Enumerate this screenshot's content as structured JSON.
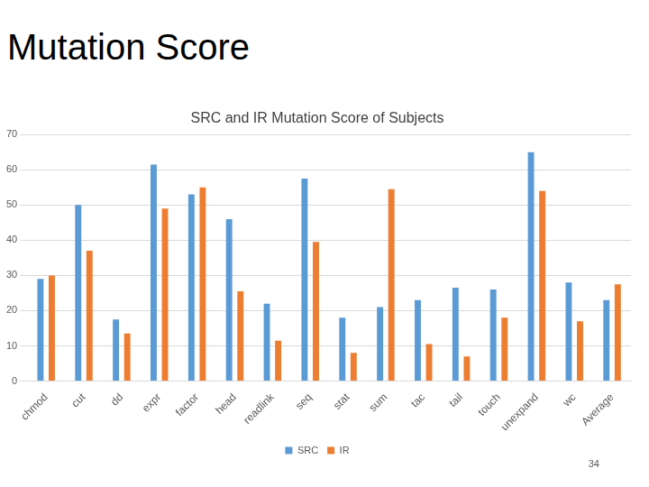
{
  "slide": {
    "title": "Mutation Score",
    "page_number": 34
  },
  "chart_data": {
    "type": "bar",
    "title": "SRC and IR Mutation Score of Subjects",
    "categories": [
      "chmod",
      "cut",
      "dd",
      "expr",
      "factor",
      "head",
      "readlink",
      "seq",
      "stat",
      "sum",
      "tac",
      "tail",
      "touch",
      "unexpand",
      "wc",
      "Average"
    ],
    "series": [
      {
        "name": "SRC",
        "color": "#5b9bd5",
        "values": [
          29,
          50,
          17.5,
          61.5,
          53,
          46,
          22,
          57.5,
          18,
          21,
          23,
          26.5,
          26,
          65,
          28,
          23
        ]
      },
      {
        "name": "IR",
        "color": "#ed7d31",
        "values": [
          30,
          37,
          13.5,
          49,
          55,
          25.5,
          11.5,
          39.5,
          8,
          54.5,
          10.5,
          7,
          18,
          54,
          17,
          27.5
        ]
      }
    ],
    "ylim": [
      0,
      70
    ],
    "yticks": [
      0,
      10,
      20,
      30,
      40,
      50,
      60,
      70
    ],
    "grid": true,
    "legend": "bottom"
  }
}
